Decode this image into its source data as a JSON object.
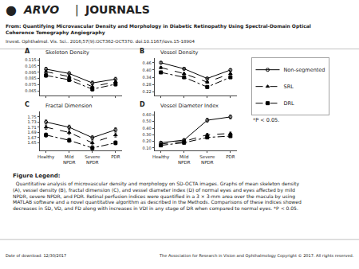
{
  "title": "From: Quantifying Microvascular Density and Morphology in Diabetic Retinopathy Using Spectral-Domain Optical\nCoherence Tomography Angiography",
  "subtitle": "Invest. Ophthalmol. Vis. Sci.. 2016;57(9):OCT362-OCT370. doi:10.1167/iovs.15-18904",
  "annotations": [
    "●",
    "ARVO",
    "|",
    "JOURNALS",
    "Figure Legend:",
    "  Quantitative analysis of microvascular density and morphology on SD-OCTA images. Graphs of mean skeleton density\n(A), vessel density (B), fractal dimension (C), and vessel diameter index (D) of normal eyes and eyes affected by mild\nNPDR, severe NPDR, and PDR. Retinal perfusion indices were quantified in a 3 × 3-mm area over the macula by using\nMATLAB software and a novel quantitative algorithm as described in the Methods. Comparisons of these indices showed\ndecreases in SD, VD, and FD along with increases in VDI in any stage of DR when compared to normal eyes. *P < 0.05.",
    "*P < 0.05.",
    "Date of download: 12/30/2017",
    "The Association for Research in Vision and Ophthalmology Copyright © 2017. All rights reserved."
  ],
  "legend": "right",
  "chart_data": [
    {
      "type": "line",
      "title": "Skeleton Density",
      "annotations": [
        "A"
      ],
      "categories": [
        "Healthy",
        "Mild\nNPDR",
        "Severe\nNPDR",
        "PDR"
      ],
      "series": [
        {
          "name": "Non-segmented",
          "color": "black",
          "marker": "circle-open",
          "line_style": "solid",
          "values": [
            0.1,
            0.093,
            0.078,
            0.084
          ],
          "errors": [
            0.003,
            0.003,
            0.003,
            0.003
          ]
        },
        {
          "name": "SRL",
          "color": "black",
          "marker": "triangle-up",
          "line_style": "dash",
          "values": [
            0.096,
            0.088,
            0.072,
            0.08
          ],
          "errors": [
            0.003,
            0.003,
            0.003,
            0.003
          ]
        },
        {
          "name": "DRL",
          "color": "black",
          "marker": "square",
          "line_style": "dashdot",
          "values": [
            0.09,
            0.083,
            0.068,
            0.076
          ],
          "errors": [
            0.003,
            0.003,
            0.003,
            0.003
          ]
        }
      ],
      "ylim": [
        0.058,
        0.118
      ],
      "yticks": [
        0.065,
        0.075,
        0.085,
        0.095,
        0.105,
        0.115
      ],
      "grid": false,
      "tick_labels": "y"
    },
    {
      "type": "line",
      "title": "Vessel Density",
      "annotations": [
        "B"
      ],
      "categories": [
        "Healthy",
        "Mild\nNPDR",
        "Severe\nNPDR",
        "PDR"
      ],
      "series": [
        {
          "name": "Non-segmented",
          "color": "black",
          "marker": "circle-open",
          "line_style": "solid",
          "values": [
            0.46,
            0.41,
            0.33,
            0.4
          ],
          "errors": [
            0.01,
            0.01,
            0.01,
            0.01
          ]
        },
        {
          "name": "SRL",
          "color": "black",
          "marker": "triangle-up",
          "line_style": "dash",
          "values": [
            0.42,
            0.37,
            0.3,
            0.37
          ],
          "errors": [
            0.01,
            0.01,
            0.01,
            0.01
          ]
        },
        {
          "name": "DRL",
          "color": "black",
          "marker": "square",
          "line_style": "dashdot",
          "values": [
            0.38,
            0.34,
            0.26,
            0.34
          ],
          "errors": [
            0.01,
            0.01,
            0.01,
            0.01
          ]
        }
      ],
      "ylim": [
        0.19,
        0.5
      ],
      "yticks": [
        0.22,
        0.28,
        0.34,
        {
          "value": 0.4,
          "label": "0.40"
        },
        0.46
      ],
      "grid": false,
      "tick_labels": "y"
    },
    {
      "type": "line",
      "title": "Fractal Dimension",
      "annotations": [
        "C"
      ],
      "categories": [
        "Healthy",
        "Mild\nNPDR",
        "Severe\nNPDR",
        "PDR"
      ],
      "series": [
        {
          "name": "Non-segmented",
          "color": "black",
          "marker": "circle-open",
          "line_style": "solid",
          "values": [
            1.73,
            1.71,
            1.67,
            1.7
          ],
          "errors": [
            0.008,
            0.008,
            0.008,
            0.008
          ]
        },
        {
          "name": "SRL",
          "color": "black",
          "marker": "triangle-up",
          "line_style": "dash",
          "values": [
            1.71,
            1.69,
            1.65,
            1.68
          ],
          "errors": [
            0.008,
            0.008,
            0.008,
            0.008
          ]
        },
        {
          "name": "DRL",
          "color": "black",
          "marker": "square",
          "line_style": "dashdot",
          "values": [
            1.68,
            1.66,
            1.63,
            1.65
          ],
          "errors": [
            0.008,
            0.008,
            0.008,
            0.008
          ]
        }
      ],
      "ylim": [
        1.62,
        1.77
      ],
      "yticks": [
        1.65,
        1.67,
        1.69,
        1.71,
        1.73,
        1.75
      ],
      "grid": false
    },
    {
      "type": "line",
      "title": "Vessel Diameter Index",
      "annotations": [
        "D"
      ],
      "categories": [
        "Healthy",
        "Mild\nNPDR",
        "Severe\nNPDR",
        "PDR"
      ],
      "series": [
        {
          "name": "Non-segmented",
          "color": "black",
          "marker": "circle-open",
          "line_style": "solid",
          "values": [
            0.18,
            0.22,
            0.52,
            0.57
          ],
          "errors": [
            0.02,
            0.02,
            0.03,
            0.03
          ]
        },
        {
          "name": "SRL",
          "color": "black",
          "marker": "triangle-up",
          "line_style": "dash",
          "values": [
            0.16,
            0.2,
            0.3,
            0.32
          ],
          "errors": [
            0.02,
            0.02,
            0.02,
            0.02
          ]
        },
        {
          "name": "DRL",
          "color": "black",
          "marker": "square",
          "line_style": "dashdot",
          "values": [
            0.14,
            0.18,
            0.26,
            0.28
          ],
          "errors": [
            0.02,
            0.02,
            0.02,
            0.02
          ]
        }
      ],
      "ylim": [
        0.06,
        0.65
      ],
      "yticks": [
        {
          "value": 0.1,
          "label": "0.10"
        },
        {
          "value": 0.2,
          "label": "0.20"
        },
        {
          "value": 0.3,
          "label": "0.30"
        },
        {
          "value": 0.4,
          "label": "0.40"
        },
        {
          "value": 0.5,
          "label": "0.50"
        },
        {
          "value": 0.6,
          "label": "0.60"
        }
      ],
      "grid": false
    }
  ]
}
